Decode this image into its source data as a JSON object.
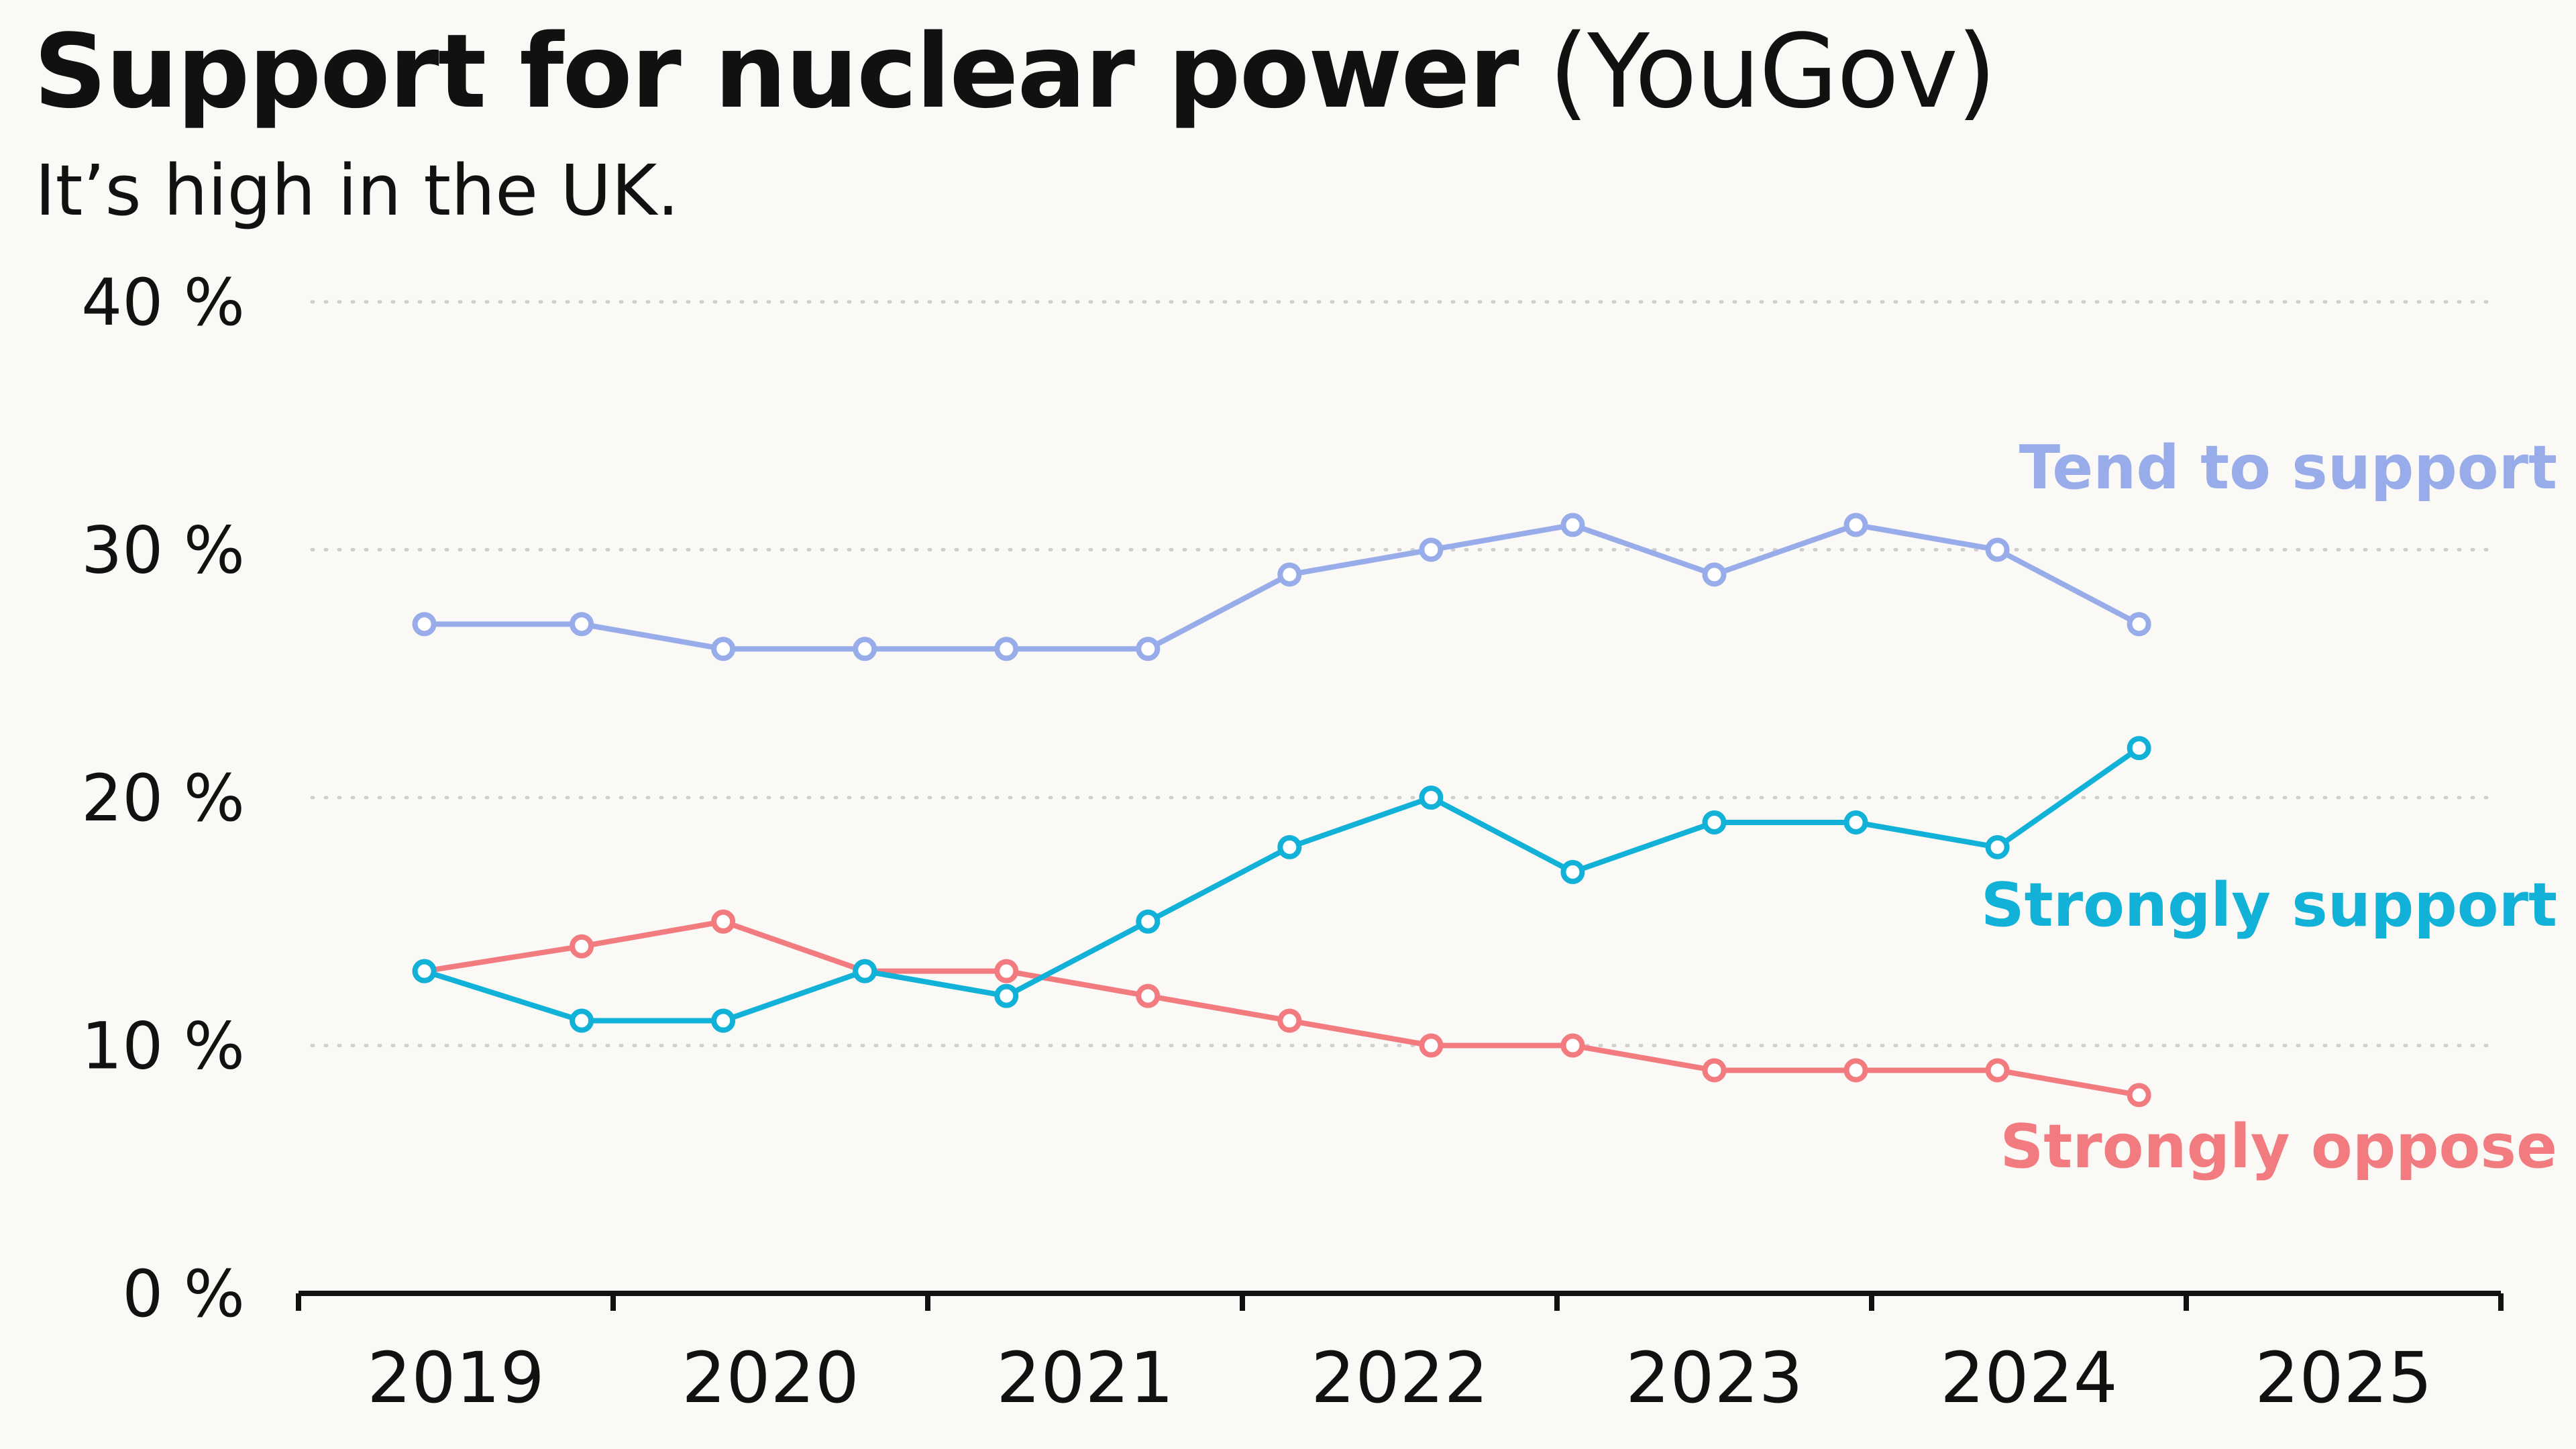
{
  "title": {
    "bold": "Support for nuclear power",
    "light": "(YouGov)"
  },
  "subtitle": "It’s high in the UK.",
  "chart_data": {
    "type": "line",
    "x": [
      2019.4,
      2019.9,
      2020.35,
      2020.8,
      2021.25,
      2021.7,
      2022.15,
      2022.6,
      2023.05,
      2023.5,
      2023.95,
      2024.4,
      2024.85
    ],
    "x_axis": {
      "range": [
        2019,
        2026
      ],
      "tick_labels": [
        "2019",
        "2020",
        "2021",
        "2022",
        "2023",
        "2024",
        "2025"
      ],
      "ticks": [
        2019,
        2020,
        2021,
        2022,
        2023,
        2024,
        2025,
        2026
      ]
    },
    "y_axis": {
      "range": [
        0,
        40
      ],
      "ticks": [
        0,
        10,
        20,
        30,
        40
      ],
      "tick_labels": [
        "0 %",
        "10 %",
        "20 %",
        "30 %",
        "40 %"
      ]
    },
    "grid": "horizontal dotted",
    "legend": "direct labels at right",
    "series": [
      {
        "name": "Tend to support",
        "color": "#97ace9",
        "values": [
          27,
          27,
          26,
          26,
          26,
          26,
          29,
          30,
          31,
          29,
          31,
          30,
          27
        ]
      },
      {
        "name": "Strongly support",
        "color": "#12b1d8",
        "values": [
          13,
          11,
          11,
          13,
          12,
          15,
          18,
          20,
          17,
          19,
          19,
          18,
          22
        ]
      },
      {
        "name": "Strongly oppose",
        "color": "#f27b80",
        "values": [
          13,
          14,
          15,
          13,
          13,
          12,
          11,
          10,
          10,
          9,
          9,
          9,
          8
        ]
      }
    ]
  }
}
